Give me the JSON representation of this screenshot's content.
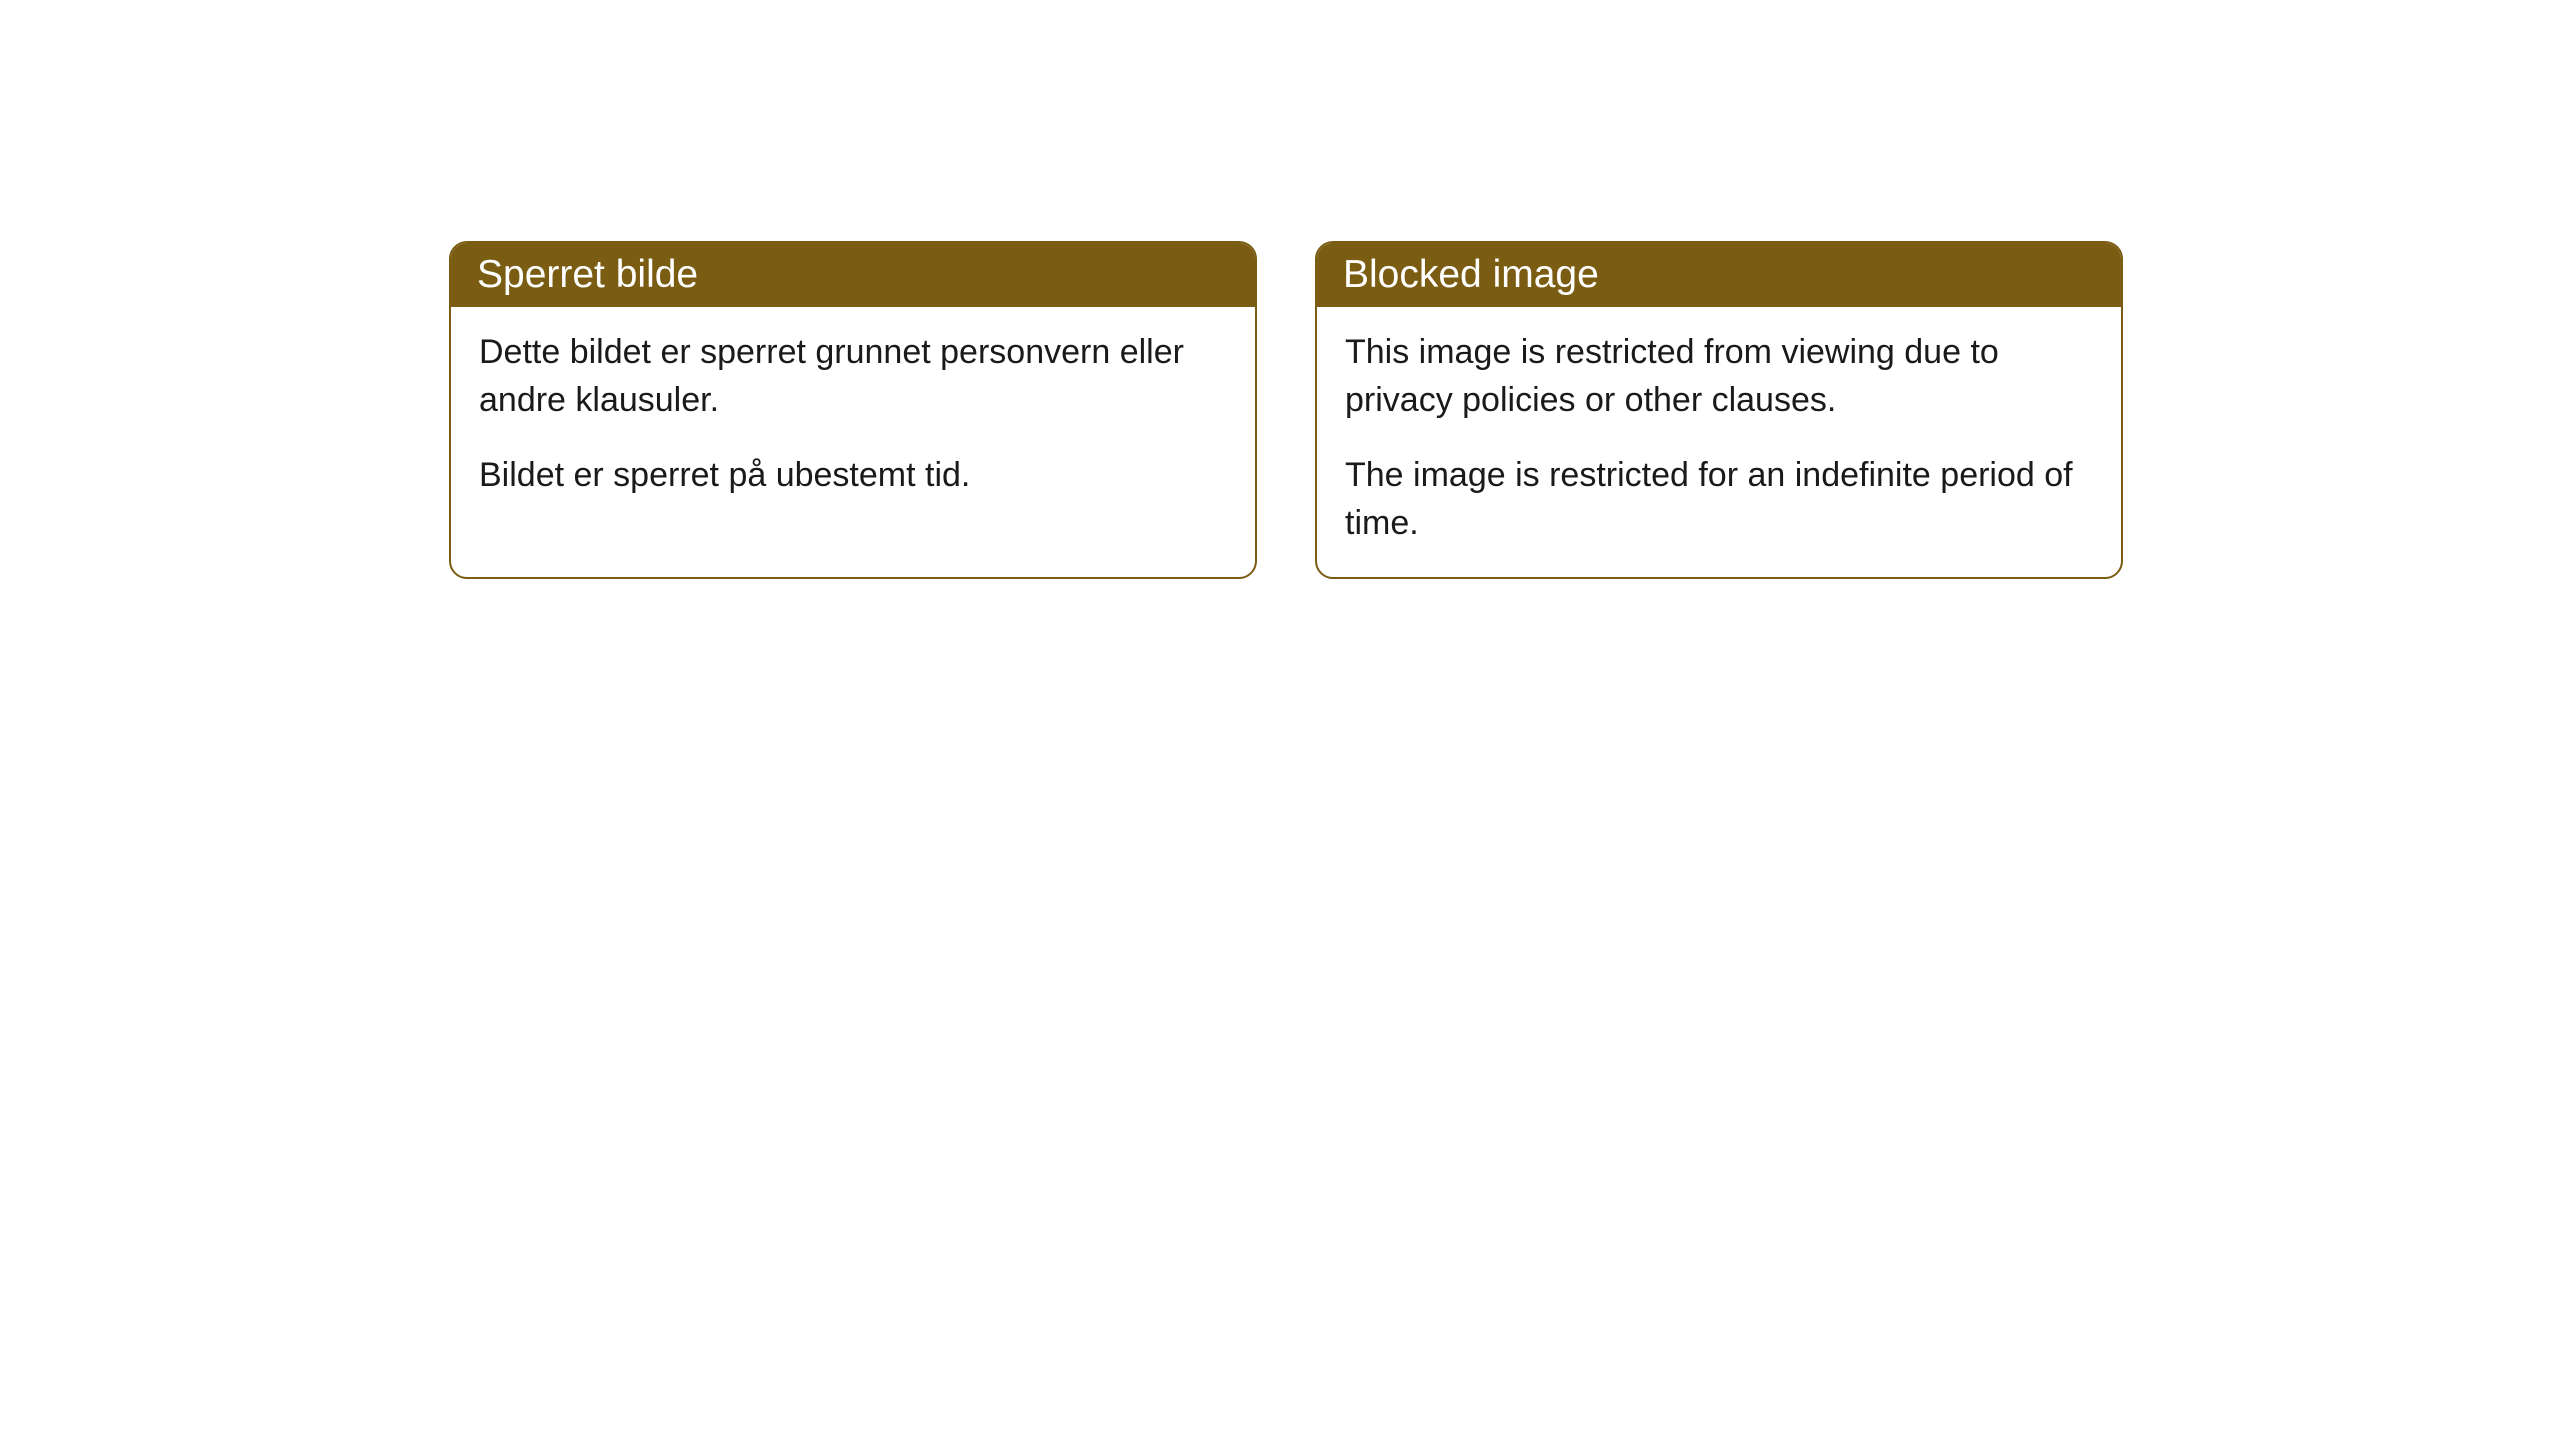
{
  "cards": [
    {
      "title": "Sperret bilde",
      "paragraph1": "Dette bildet er sperret grunnet personvern eller andre klausuler.",
      "paragraph2": "Bildet er sperret på ubestemt tid."
    },
    {
      "title": "Blocked image",
      "paragraph1": "This image is restricted from viewing due to privacy policies or other clauses.",
      "paragraph2": "The image is restricted for an indefinite period of time."
    }
  ],
  "styling": {
    "header_background": "#7a5d13",
    "header_text_color": "#ffffff",
    "border_color": "#7a5d13",
    "body_background": "#ffffff",
    "body_text_color": "#1a1a1a",
    "border_radius": 18,
    "title_fontsize": 39,
    "body_fontsize": 34
  }
}
